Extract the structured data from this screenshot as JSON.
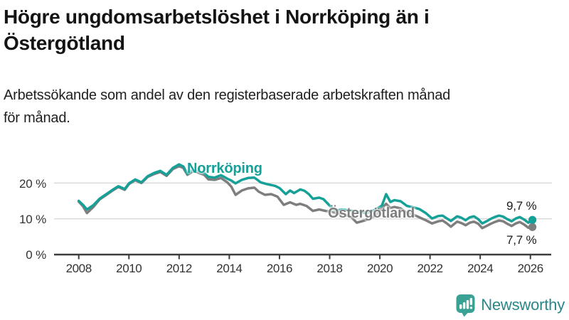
{
  "header": {
    "title_lines": [
      "Högre ungdomsarbetslöshet i Norrköping än i",
      "Östergötland"
    ],
    "subtitle_lines": [
      "Arbetssökande som andel av den registerbaserade arbetskraften månad",
      "för månad."
    ]
  },
  "chart_data": {
    "type": "line",
    "title": "Högre ungdomsarbetslöshet i Norrköping än i Östergötland",
    "subtitle": "Arbetssökande som andel av den registerbaserade arbetskraften månad för månad.",
    "xlabel": "",
    "ylabel": "",
    "grid": "horizontal",
    "legend_position": "inline-labels-on-lines",
    "x_axis": {
      "ticks": [
        2008,
        2010,
        2012,
        2014,
        2016,
        2018,
        2020,
        2022,
        2024,
        2026
      ],
      "tick_labels": [
        "2008",
        "2010",
        "2012",
        "2014",
        "2016",
        "2018",
        "2020",
        "2022",
        "2024",
        "2026"
      ],
      "range": [
        2007.0,
        2026.85
      ]
    },
    "y_axis": {
      "ticks": [
        0,
        10,
        20
      ],
      "tick_labels": [
        "0 %",
        "10 %",
        "20 %"
      ],
      "unit": "%",
      "range": [
        0,
        28.5
      ]
    },
    "series": [
      {
        "name": "Norrköping",
        "color": "#16a198",
        "end_value": 9.7,
        "end_label": "9,7 %",
        "points": [
          [
            2008.0,
            15.0
          ],
          [
            2008.17,
            13.9
          ],
          [
            2008.33,
            12.6
          ],
          [
            2008.58,
            13.8
          ],
          [
            2008.83,
            15.6
          ],
          [
            2009.08,
            16.8
          ],
          [
            2009.33,
            18.0
          ],
          [
            2009.58,
            19.1
          ],
          [
            2009.83,
            18.3
          ],
          [
            2010.0,
            19.9
          ],
          [
            2010.25,
            21.0
          ],
          [
            2010.5,
            20.2
          ],
          [
            2010.75,
            21.9
          ],
          [
            2011.0,
            22.8
          ],
          [
            2011.25,
            23.4
          ],
          [
            2011.5,
            22.3
          ],
          [
            2011.75,
            24.2
          ],
          [
            2012.0,
            25.2
          ],
          [
            2012.17,
            24.6
          ],
          [
            2012.33,
            22.6
          ],
          [
            2012.58,
            23.9
          ],
          [
            2012.83,
            23.1
          ],
          [
            2013.0,
            22.8
          ],
          [
            2013.17,
            21.7
          ],
          [
            2013.42,
            21.5
          ],
          [
            2013.67,
            22.2
          ],
          [
            2013.92,
            21.2
          ],
          [
            2014.08,
            20.7
          ],
          [
            2014.25,
            19.9
          ],
          [
            2014.5,
            20.9
          ],
          [
            2014.75,
            21.4
          ],
          [
            2015.0,
            21.5
          ],
          [
            2015.25,
            20.2
          ],
          [
            2015.5,
            19.7
          ],
          [
            2015.83,
            19.2
          ],
          [
            2016.0,
            18.6
          ],
          [
            2016.25,
            16.9
          ],
          [
            2016.42,
            17.9
          ],
          [
            2016.58,
            17.2
          ],
          [
            2016.83,
            18.2
          ],
          [
            2017.0,
            17.8
          ],
          [
            2017.17,
            16.9
          ],
          [
            2017.33,
            15.6
          ],
          [
            2017.58,
            15.9
          ],
          [
            2017.75,
            15.5
          ],
          [
            2018.0,
            13.7
          ],
          [
            2018.25,
            12.3
          ],
          [
            2018.5,
            12.6
          ],
          [
            2018.75,
            12.4
          ],
          [
            2019.0,
            12.1
          ],
          [
            2019.25,
            11.8
          ],
          [
            2019.5,
            11.6
          ],
          [
            2019.83,
            12.6
          ],
          [
            2020.08,
            13.7
          ],
          [
            2020.25,
            16.9
          ],
          [
            2020.42,
            14.7
          ],
          [
            2020.58,
            15.2
          ],
          [
            2020.83,
            14.9
          ],
          [
            2021.08,
            13.6
          ],
          [
            2021.33,
            13.2
          ],
          [
            2021.58,
            12.7
          ],
          [
            2021.83,
            11.6
          ],
          [
            2022.08,
            10.1
          ],
          [
            2022.33,
            10.8
          ],
          [
            2022.5,
            10.9
          ],
          [
            2022.67,
            10.1
          ],
          [
            2022.83,
            9.4
          ],
          [
            2023.08,
            10.7
          ],
          [
            2023.25,
            10.3
          ],
          [
            2023.42,
            9.6
          ],
          [
            2023.58,
            10.4
          ],
          [
            2023.75,
            10.7
          ],
          [
            2023.92,
            9.9
          ],
          [
            2024.08,
            8.7
          ],
          [
            2024.25,
            9.3
          ],
          [
            2024.42,
            10.0
          ],
          [
            2024.58,
            10.5
          ],
          [
            2024.75,
            10.9
          ],
          [
            2024.92,
            10.6
          ],
          [
            2025.08,
            9.9
          ],
          [
            2025.25,
            9.3
          ],
          [
            2025.42,
            10.1
          ],
          [
            2025.58,
            10.5
          ],
          [
            2025.75,
            9.8
          ],
          [
            2025.92,
            8.9
          ],
          [
            2026.08,
            9.7
          ]
        ]
      },
      {
        "name": "Östergötland",
        "color": "#7e7e7e",
        "end_value": 7.7,
        "end_label": "7,7 %",
        "points": [
          [
            2008.0,
            14.8
          ],
          [
            2008.17,
            13.5
          ],
          [
            2008.33,
            11.6
          ],
          [
            2008.58,
            13.3
          ],
          [
            2008.83,
            15.4
          ],
          [
            2009.08,
            16.6
          ],
          [
            2009.33,
            17.8
          ],
          [
            2009.58,
            18.9
          ],
          [
            2009.83,
            18.1
          ],
          [
            2010.0,
            19.7
          ],
          [
            2010.25,
            20.8
          ],
          [
            2010.5,
            20.0
          ],
          [
            2010.75,
            21.7
          ],
          [
            2011.0,
            22.5
          ],
          [
            2011.25,
            23.1
          ],
          [
            2011.5,
            22.0
          ],
          [
            2011.75,
            23.9
          ],
          [
            2012.0,
            24.7
          ],
          [
            2012.17,
            24.2
          ],
          [
            2012.33,
            22.3
          ],
          [
            2012.58,
            23.4
          ],
          [
            2012.83,
            22.7
          ],
          [
            2013.0,
            22.3
          ],
          [
            2013.17,
            21.0
          ],
          [
            2013.42,
            20.9
          ],
          [
            2013.67,
            21.4
          ],
          [
            2013.92,
            20.2
          ],
          [
            2014.08,
            19.0
          ],
          [
            2014.25,
            16.7
          ],
          [
            2014.5,
            17.9
          ],
          [
            2014.75,
            18.5
          ],
          [
            2015.0,
            18.7
          ],
          [
            2015.17,
            17.6
          ],
          [
            2015.42,
            16.7
          ],
          [
            2015.67,
            16.9
          ],
          [
            2015.92,
            16.2
          ],
          [
            2016.17,
            13.9
          ],
          [
            2016.42,
            14.6
          ],
          [
            2016.67,
            13.9
          ],
          [
            2016.83,
            14.2
          ],
          [
            2017.08,
            13.6
          ],
          [
            2017.33,
            12.2
          ],
          [
            2017.58,
            12.6
          ],
          [
            2017.83,
            12.2
          ],
          [
            2018.08,
            12.0
          ],
          [
            2018.33,
            11.4
          ],
          [
            2018.58,
            11.1
          ],
          [
            2018.83,
            10.7
          ],
          [
            2019.08,
            8.9
          ],
          [
            2019.33,
            9.4
          ],
          [
            2019.58,
            9.9
          ],
          [
            2019.83,
            11.0
          ],
          [
            2019.97,
            12.2
          ],
          [
            2020.25,
            14.2
          ],
          [
            2020.42,
            13.0
          ],
          [
            2020.58,
            13.3
          ],
          [
            2020.83,
            12.9
          ],
          [
            2021.08,
            11.6
          ],
          [
            2021.33,
            11.2
          ],
          [
            2021.58,
            10.4
          ],
          [
            2021.83,
            9.6
          ],
          [
            2022.08,
            8.7
          ],
          [
            2022.33,
            9.3
          ],
          [
            2022.5,
            9.5
          ],
          [
            2022.67,
            8.7
          ],
          [
            2022.83,
            7.8
          ],
          [
            2023.08,
            9.2
          ],
          [
            2023.25,
            8.8
          ],
          [
            2023.42,
            8.2
          ],
          [
            2023.58,
            8.9
          ],
          [
            2023.75,
            9.2
          ],
          [
            2023.92,
            8.6
          ],
          [
            2024.08,
            7.4
          ],
          [
            2024.25,
            8.0
          ],
          [
            2024.42,
            8.6
          ],
          [
            2024.58,
            9.1
          ],
          [
            2024.75,
            9.5
          ],
          [
            2024.92,
            9.3
          ],
          [
            2025.08,
            8.6
          ],
          [
            2025.25,
            8.0
          ],
          [
            2025.42,
            8.7
          ],
          [
            2025.58,
            9.1
          ],
          [
            2025.75,
            8.4
          ],
          [
            2025.92,
            7.5
          ],
          [
            2026.08,
            7.7
          ]
        ]
      }
    ]
  },
  "colors": {
    "accent_teal": "#16a198",
    "series_gray": "#7e7e7e",
    "grid": "#d9d9d9",
    "axis": "#3c3c3c",
    "text_dark": "#141414",
    "brand_teal_icon": "#3aa294",
    "brand_wordmark": "#2c8689"
  },
  "footer": {
    "brand": "Newsworthy"
  }
}
